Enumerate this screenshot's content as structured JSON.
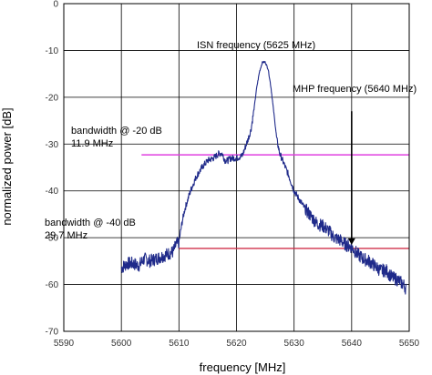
{
  "chart_data": {
    "type": "line",
    "title": "",
    "xlabel": "frequency  [MHz]",
    "ylabel": "normalized power [dB]",
    "xlim": [
      5590,
      5650
    ],
    "ylim": [
      -70,
      0
    ],
    "x_ticks": [
      "5590",
      "5600",
      "5610",
      "5620",
      "5630",
      "5640",
      "5650"
    ],
    "y_ticks": [
      "0",
      "-10",
      "-20",
      "-30",
      "-40",
      "-50",
      "-60",
      "-70"
    ],
    "grid": "on",
    "legend": "none",
    "colors": {
      "spectrum": "#1f2a8a",
      "bw20_line": "#e040e0",
      "bw40_line": "#d0304a",
      "arrow": "#000000",
      "grid": "#000000"
    },
    "series": [
      {
        "x": [
          5600.0,
          5601.0,
          5602.0,
          5603.0,
          5604.0,
          5605.0,
          5606.0,
          5607.0,
          5608.0,
          5609.0,
          5609.5,
          5610.0,
          5610.5,
          5611.0,
          5612.0,
          5613.0,
          5614.0,
          5615.0,
          5616.0,
          5617.0,
          5617.5,
          5618.0,
          5618.5,
          5619.0,
          5620.0,
          5621.0,
          5622.0,
          5622.5,
          5623.0,
          5623.5,
          5624.0,
          5624.5,
          5625.0,
          5625.5,
          5626.0,
          5626.5,
          5627.0,
          5627.5,
          5628.0,
          5629.0,
          5630.0,
          5631.0,
          5632.0,
          5633.0,
          5634.0,
          5635.0,
          5636.0,
          5637.0,
          5638.0,
          5639.0,
          5640.0,
          5641.0,
          5642.0,
          5643.0,
          5644.0,
          5645.0,
          5646.0,
          5647.0,
          5648.0,
          5649.0,
          5649.5
        ],
        "values": [
          -56.5,
          -55.5,
          -55.5,
          -56.0,
          -54.5,
          -55.0,
          -54.5,
          -54.0,
          -53.5,
          -53.0,
          -51.5,
          -51.0,
          -47.0,
          -44.0,
          -40.0,
          -37.0,
          -35.0,
          -33.5,
          -33.0,
          -32.0,
          -32.0,
          -33.5,
          -33.5,
          -33.0,
          -33.0,
          -32.5,
          -29.0,
          -27.0,
          -23.0,
          -18.0,
          -14.5,
          -12.5,
          -12.5,
          -14.0,
          -18.0,
          -23.5,
          -29.0,
          -32.0,
          -33.5,
          -36.5,
          -40.0,
          -42.0,
          -44.0,
          -45.5,
          -47.0,
          -47.5,
          -48.5,
          -50.0,
          -50.5,
          -51.5,
          -52.0,
          -53.5,
          -54.5,
          -55.0,
          -56.0,
          -57.0,
          -57.0,
          -58.5,
          -59.0,
          -60.0,
          -61.0
        ]
      }
    ],
    "reference_lines": [
      {
        "label": "bandwidth @ -20 dB",
        "value_text": "11.9 MHz",
        "y": -32.3
      },
      {
        "label": "bandwidth @ -40 dB",
        "value_text": "29.7 MHz",
        "y": -52.3
      }
    ],
    "annotations": {
      "isn": "ISN frequency (5625 MHz)",
      "mhp": "MHP frequency (5640 MHz)",
      "arrow_x": 5640,
      "arrow_y_from": -23,
      "arrow_y_to": -51.5
    }
  }
}
